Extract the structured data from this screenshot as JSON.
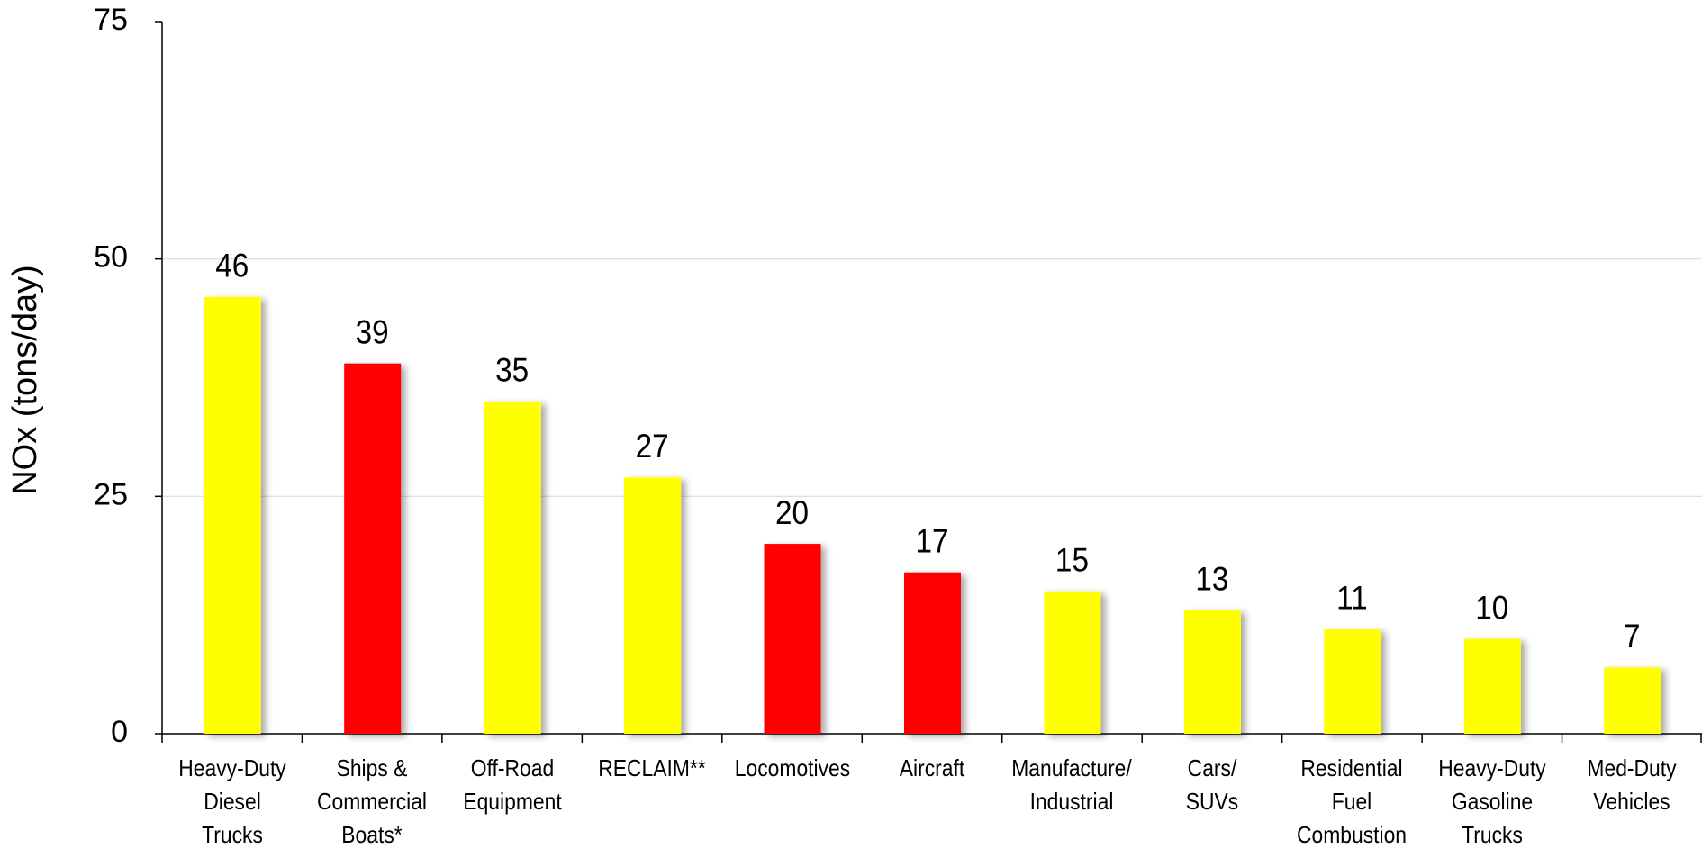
{
  "chart_data": {
    "type": "bar",
    "ylabel": "NOx (tons/day)",
    "categories": [
      "Heavy-Duty\nDiesel\nTrucks",
      "Ships &\nCommercial\nBoats*",
      "Off-Road\nEquipment",
      "RECLAIM**",
      "Locomotives",
      "Aircraft",
      "Manufacture/\nIndustrial",
      "Cars/\nSUVs",
      "Residential\nFuel\nCombustion",
      "Heavy-Duty\nGasoline\nTrucks",
      "Med-Duty\nVehicles"
    ],
    "values": [
      46,
      39,
      35,
      27,
      20,
      17,
      15,
      13,
      11,
      10,
      7
    ],
    "colors": [
      "#ffff00",
      "#ff0000",
      "#ffff00",
      "#ffff00",
      "#ff0000",
      "#ff0000",
      "#ffff00",
      "#ffff00",
      "#ffff00",
      "#ffff00",
      "#ffff00"
    ],
    "ylim": [
      0,
      75
    ],
    "yticks": [
      0,
      25,
      50,
      75
    ],
    "grid": true
  }
}
